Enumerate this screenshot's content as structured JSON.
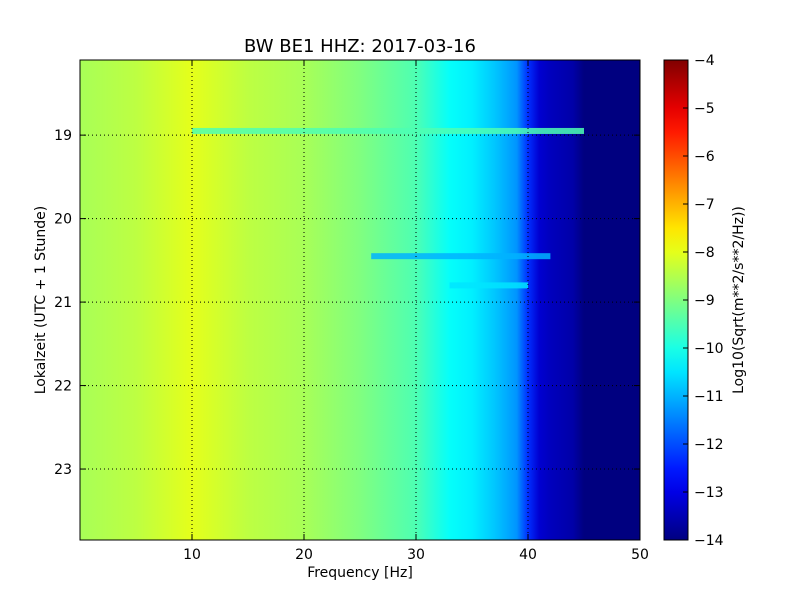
{
  "chart_data": {
    "type": "heatmap",
    "title": "BW BE1 HHZ: 2017-03-16",
    "xlabel": "Frequency [Hz]",
    "ylabel": "Lokalzeit (UTC + 1 Stunde)",
    "xlim": [
      0,
      50
    ],
    "ylim": [
      18.1,
      23.85
    ],
    "x_ticks": [
      10,
      20,
      30,
      40,
      50
    ],
    "x_tick_labels": [
      "10",
      "20",
      "30",
      "40",
      "50"
    ],
    "y_ticks": [
      19,
      20,
      21,
      22,
      23
    ],
    "y_tick_labels": [
      "19",
      "20",
      "21",
      "22",
      "23"
    ],
    "y_inverted": true,
    "grid": true,
    "colormap": "jet",
    "colorbar": {
      "label": "Log10(Sqrt(m**2/s**2/Hz))",
      "range": [
        -14,
        -4
      ],
      "ticks": [
        -4,
        -5,
        -6,
        -7,
        -8,
        -9,
        -10,
        -11,
        -12,
        -13,
        -14
      ],
      "tick_labels": [
        "−4",
        "−5",
        "−6",
        "−7",
        "−8",
        "−9",
        "−10",
        "−11",
        "−12",
        "−13",
        "−14"
      ]
    },
    "spectrum_profile": {
      "frequency_hz": [
        0,
        5,
        10,
        15,
        20,
        25,
        30,
        33,
        35,
        37,
        39,
        40,
        41,
        42,
        44,
        45,
        50
      ],
      "log10_amplitude": [
        -8.6,
        -8.4,
        -8.0,
        -8.4,
        -8.6,
        -9.0,
        -9.5,
        -10.2,
        -10.4,
        -10.8,
        -11.3,
        -12.3,
        -13.2,
        -13.4,
        -13.6,
        -14.0,
        -14.0
      ]
    },
    "features": [
      {
        "type": "band",
        "time": 18.95,
        "freq_range": [
          10,
          45
        ],
        "log10_amplitude": -9.5
      },
      {
        "type": "band",
        "time": 20.45,
        "freq_range": [
          26,
          42
        ],
        "log10_amplitude": -11.0
      },
      {
        "type": "band",
        "time": 20.8,
        "freq_range": [
          33,
          40
        ],
        "log10_amplitude": -10.5
      }
    ]
  }
}
